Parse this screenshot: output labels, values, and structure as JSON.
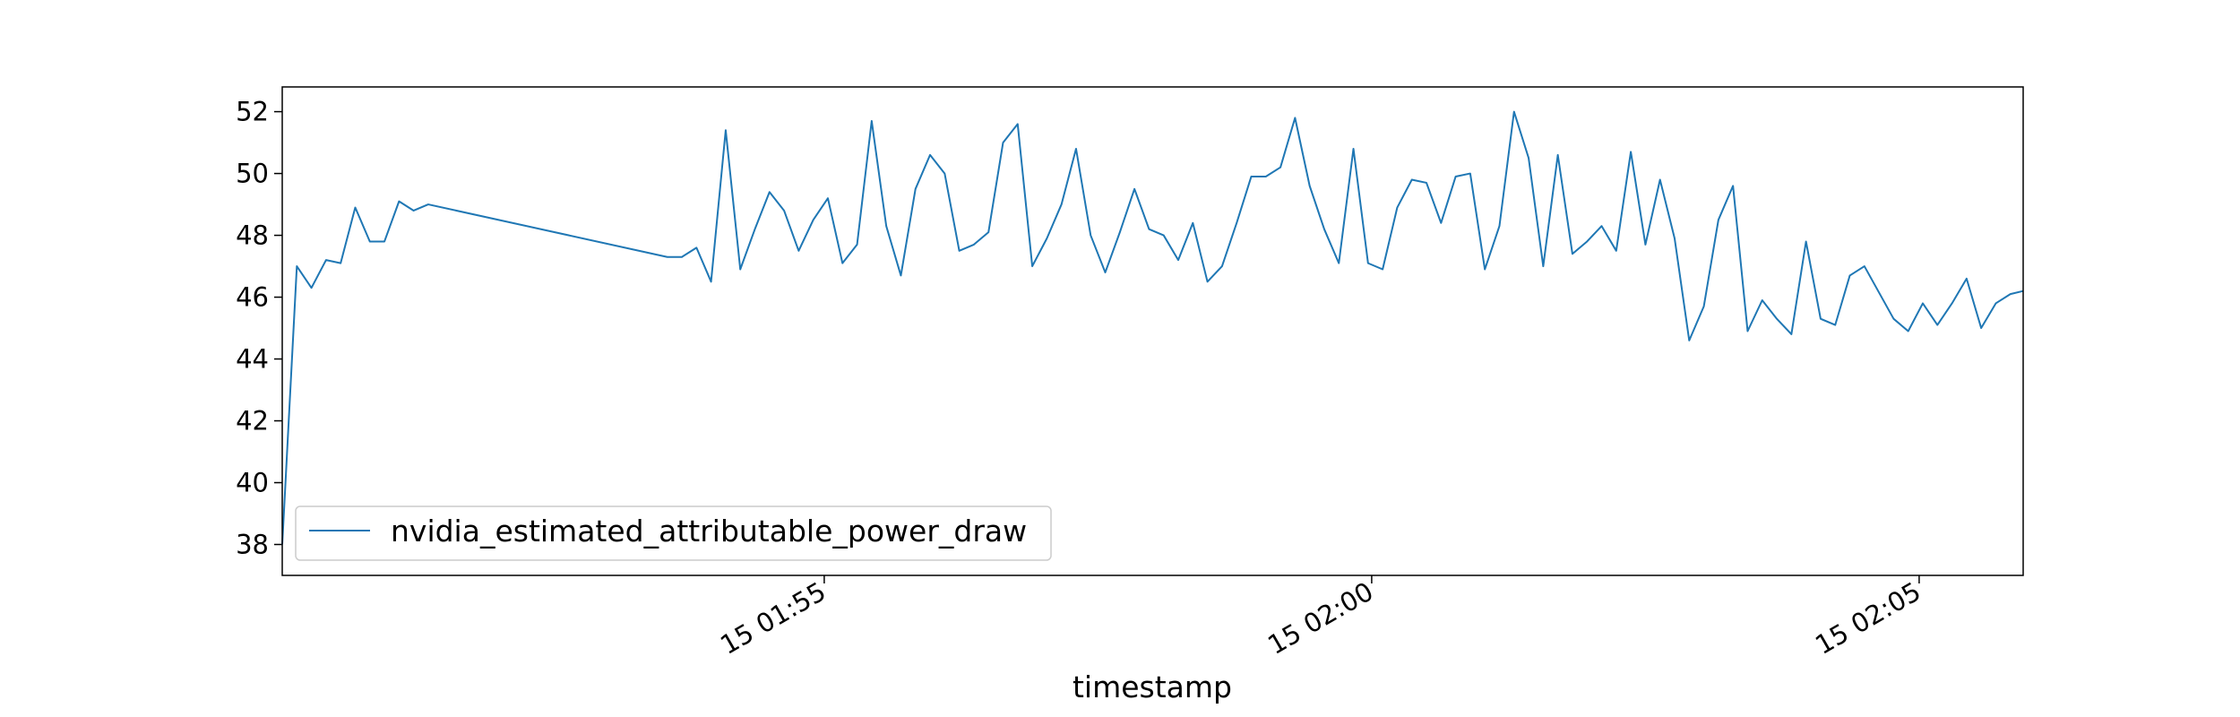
{
  "chart_data": {
    "type": "line",
    "title": "",
    "xlabel": "timestamp",
    "ylabel": "",
    "x_axis_type": "time",
    "xlim": [
      "15 01:50:03",
      "15 02:05:57"
    ],
    "ylim": [
      37.0,
      52.8
    ],
    "y_ticks": [
      38,
      40,
      42,
      44,
      46,
      48,
      50,
      52
    ],
    "x_ticks": [
      {
        "t": "15 01:55:00",
        "label": "15 01:55"
      },
      {
        "t": "15 02:00:00",
        "label": "15 02:00"
      },
      {
        "t": "15 02:05:00",
        "label": "15 02:05"
      }
    ],
    "grid": false,
    "legend": {
      "position": "lower-left"
    },
    "line_color": "#1f77b4",
    "series": [
      {
        "name": "nvidia_estimated_attributable_power_draw",
        "x": [
          "15 01:50:03",
          "15 01:50:11",
          "15 01:50:19",
          "15 01:50:27",
          "15 01:50:35",
          "15 01:50:43",
          "15 01:50:51",
          "15 01:50:59",
          "15 01:51:07",
          "15 01:51:15",
          "15 01:51:23",
          "15 01:53:34",
          "15 01:53:42",
          "15 01:53:50",
          "15 01:53:58",
          "15 01:54:06",
          "15 01:54:14",
          "15 01:54:22",
          "15 01:54:30",
          "15 01:54:38",
          "15 01:54:46",
          "15 01:54:54",
          "15 01:55:02",
          "15 01:55:10",
          "15 01:55:18",
          "15 01:55:26",
          "15 01:55:34",
          "15 01:55:42",
          "15 01:55:50",
          "15 01:55:58",
          "15 01:56:06",
          "15 01:56:14",
          "15 01:56:22",
          "15 01:56:30",
          "15 01:56:38",
          "15 01:56:46",
          "15 01:56:54",
          "15 01:57:02",
          "15 01:57:10",
          "15 01:57:18",
          "15 01:57:26",
          "15 01:57:34",
          "15 01:57:42",
          "15 01:57:50",
          "15 01:57:58",
          "15 01:58:06",
          "15 01:58:14",
          "15 01:58:22",
          "15 01:58:30",
          "15 01:58:38",
          "15 01:58:46",
          "15 01:58:54",
          "15 01:59:02",
          "15 01:59:10",
          "15 01:59:18",
          "15 01:59:26",
          "15 01:59:34",
          "15 01:59:42",
          "15 01:59:50",
          "15 01:59:58",
          "15 02:00:06",
          "15 02:00:14",
          "15 02:00:22",
          "15 02:00:30",
          "15 02:00:38",
          "15 02:00:46",
          "15 02:00:54",
          "15 02:01:02",
          "15 02:01:10",
          "15 02:01:18",
          "15 02:01:26",
          "15 02:01:34",
          "15 02:01:42",
          "15 02:01:50",
          "15 02:01:58",
          "15 02:02:06",
          "15 02:02:14",
          "15 02:02:22",
          "15 02:02:30",
          "15 02:02:38",
          "15 02:02:46",
          "15 02:02:54",
          "15 02:03:02",
          "15 02:03:10",
          "15 02:03:18",
          "15 02:03:26",
          "15 02:03:34",
          "15 02:03:42",
          "15 02:03:50",
          "15 02:03:58",
          "15 02:04:06",
          "15 02:04:14",
          "15 02:04:22",
          "15 02:04:30",
          "15 02:04:46",
          "15 02:04:54",
          "15 02:05:02",
          "15 02:05:10",
          "15 02:05:18",
          "15 02:05:26",
          "15 02:05:34",
          "15 02:05:42",
          "15 02:05:50",
          "15 02:05:57"
        ],
        "y": [
          38.0,
          47.0,
          46.3,
          47.2,
          47.1,
          48.9,
          47.8,
          47.8,
          49.1,
          48.8,
          49.0,
          47.3,
          47.3,
          47.6,
          46.5,
          51.4,
          46.9,
          48.2,
          49.4,
          48.8,
          47.5,
          48.5,
          49.2,
          47.1,
          47.7,
          51.7,
          48.3,
          46.7,
          49.5,
          50.6,
          50.0,
          47.5,
          47.7,
          48.1,
          51.0,
          51.6,
          47.0,
          47.9,
          49.0,
          50.8,
          48.0,
          46.8,
          48.1,
          49.5,
          48.2,
          48.0,
          47.2,
          48.4,
          46.5,
          47.0,
          48.4,
          49.9,
          49.9,
          50.2,
          51.8,
          49.6,
          48.2,
          47.1,
          50.8,
          47.1,
          46.9,
          48.9,
          49.8,
          49.7,
          48.4,
          49.9,
          50.0,
          46.9,
          48.3,
          52.0,
          50.5,
          47.0,
          50.6,
          47.4,
          47.8,
          48.3,
          47.5,
          50.7,
          47.7,
          49.8,
          47.9,
          44.6,
          45.7,
          48.5,
          49.6,
          44.9,
          45.9,
          45.3,
          44.8,
          47.8,
          45.3,
          45.1,
          46.7,
          47.0,
          45.3,
          44.9,
          45.8,
          45.1,
          45.8,
          46.6,
          45.0,
          45.8,
          46.1,
          46.2
        ]
      }
    ]
  }
}
